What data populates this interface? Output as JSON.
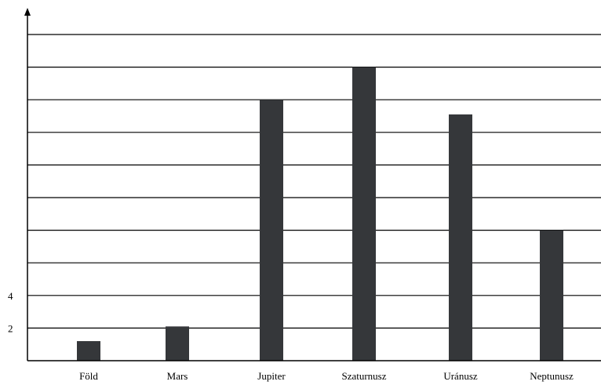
{
  "chart_data": {
    "type": "bar",
    "categories": [
      "Föld",
      "Mars",
      "Jupiter",
      "Szaturnusz",
      "Uránusz",
      "Neptunusz"
    ],
    "values": [
      1.2,
      2.1,
      16,
      18,
      15.1,
      8
    ],
    "title": "",
    "xlabel": "",
    "ylabel": "",
    "ylim": [
      0,
      20
    ],
    "yticks_shown": [
      2,
      4
    ],
    "grid_step": 2,
    "grid": true,
    "colors": {
      "bar": "#35373a",
      "grid": "#000000"
    }
  }
}
